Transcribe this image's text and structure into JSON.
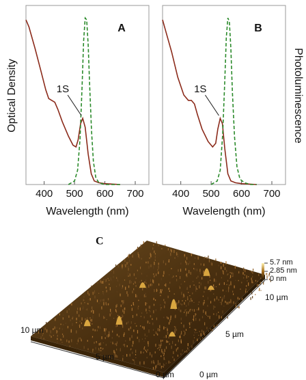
{
  "chart_data": [
    {
      "type": "line",
      "panel_label": "A",
      "ylabel": "Optical Density",
      "xlabel": "Wavelength (nm)",
      "annotation": "1S",
      "xlim": [
        340,
        745
      ],
      "ylim": [
        0,
        1
      ],
      "xticks": [
        400,
        500,
        600,
        700
      ],
      "series": [
        {
          "color": "#8b2a1a",
          "style": "solid",
          "x": [
            340,
            350,
            370,
            390,
            405,
            415,
            425,
            435,
            445,
            460,
            480,
            495,
            505,
            512,
            520,
            527,
            535,
            545,
            555,
            565,
            580,
            600,
            650
          ],
          "values": [
            0.92,
            0.88,
            0.76,
            0.63,
            0.53,
            0.48,
            0.47,
            0.46,
            0.42,
            0.35,
            0.27,
            0.22,
            0.21,
            0.25,
            0.34,
            0.37,
            0.32,
            0.17,
            0.06,
            0.02,
            0.01,
            0.005,
            0.0
          ]
        },
        {
          "color": "#2a8a2a",
          "style": "dashed",
          "x": [
            480,
            500,
            510,
            518,
            525,
            530,
            535,
            540,
            545,
            550,
            556,
            562,
            570,
            580,
            600,
            650
          ],
          "values": [
            0.0,
            0.02,
            0.08,
            0.25,
            0.55,
            0.8,
            0.93,
            0.92,
            0.78,
            0.55,
            0.3,
            0.13,
            0.04,
            0.01,
            0.0,
            0.0
          ]
        }
      ]
    },
    {
      "type": "line",
      "panel_label": "B",
      "right_label": "Photoluminescence",
      "xlabel": "Wavelength (nm)",
      "annotation": "1S",
      "xlim": [
        340,
        745
      ],
      "ylim": [
        0,
        1
      ],
      "xticks": [
        400,
        500,
        600,
        700
      ],
      "series": [
        {
          "color": "#8b2a1a",
          "style": "solid",
          "x": [
            340,
            350,
            370,
            390,
            410,
            425,
            435,
            445,
            455,
            470,
            490,
            505,
            515,
            522,
            530,
            537,
            545,
            555,
            565,
            580,
            600,
            650
          ],
          "values": [
            0.92,
            0.86,
            0.74,
            0.6,
            0.5,
            0.47,
            0.47,
            0.45,
            0.39,
            0.31,
            0.24,
            0.21,
            0.23,
            0.31,
            0.37,
            0.34,
            0.2,
            0.06,
            0.02,
            0.01,
            0.005,
            0.0
          ]
        },
        {
          "color": "#2a8a2a",
          "style": "dashed",
          "x": [
            500,
            520,
            530,
            538,
            545,
            550,
            555,
            560,
            565,
            570,
            577,
            585,
            595,
            610,
            630,
            650
          ],
          "values": [
            0.0,
            0.02,
            0.08,
            0.28,
            0.58,
            0.82,
            0.93,
            0.91,
            0.76,
            0.52,
            0.27,
            0.1,
            0.03,
            0.01,
            0.0,
            0.0
          ]
        }
      ]
    }
  ],
  "afm": {
    "panel_label": "C",
    "height_scale": [
      "5.7 nm",
      "2.85 nm",
      "0 nm"
    ],
    "left_axis": [
      "10 µm",
      "5 µm",
      "0 µm"
    ],
    "right_axis": [
      "0 µm",
      "5 µm",
      "10 µm"
    ]
  }
}
